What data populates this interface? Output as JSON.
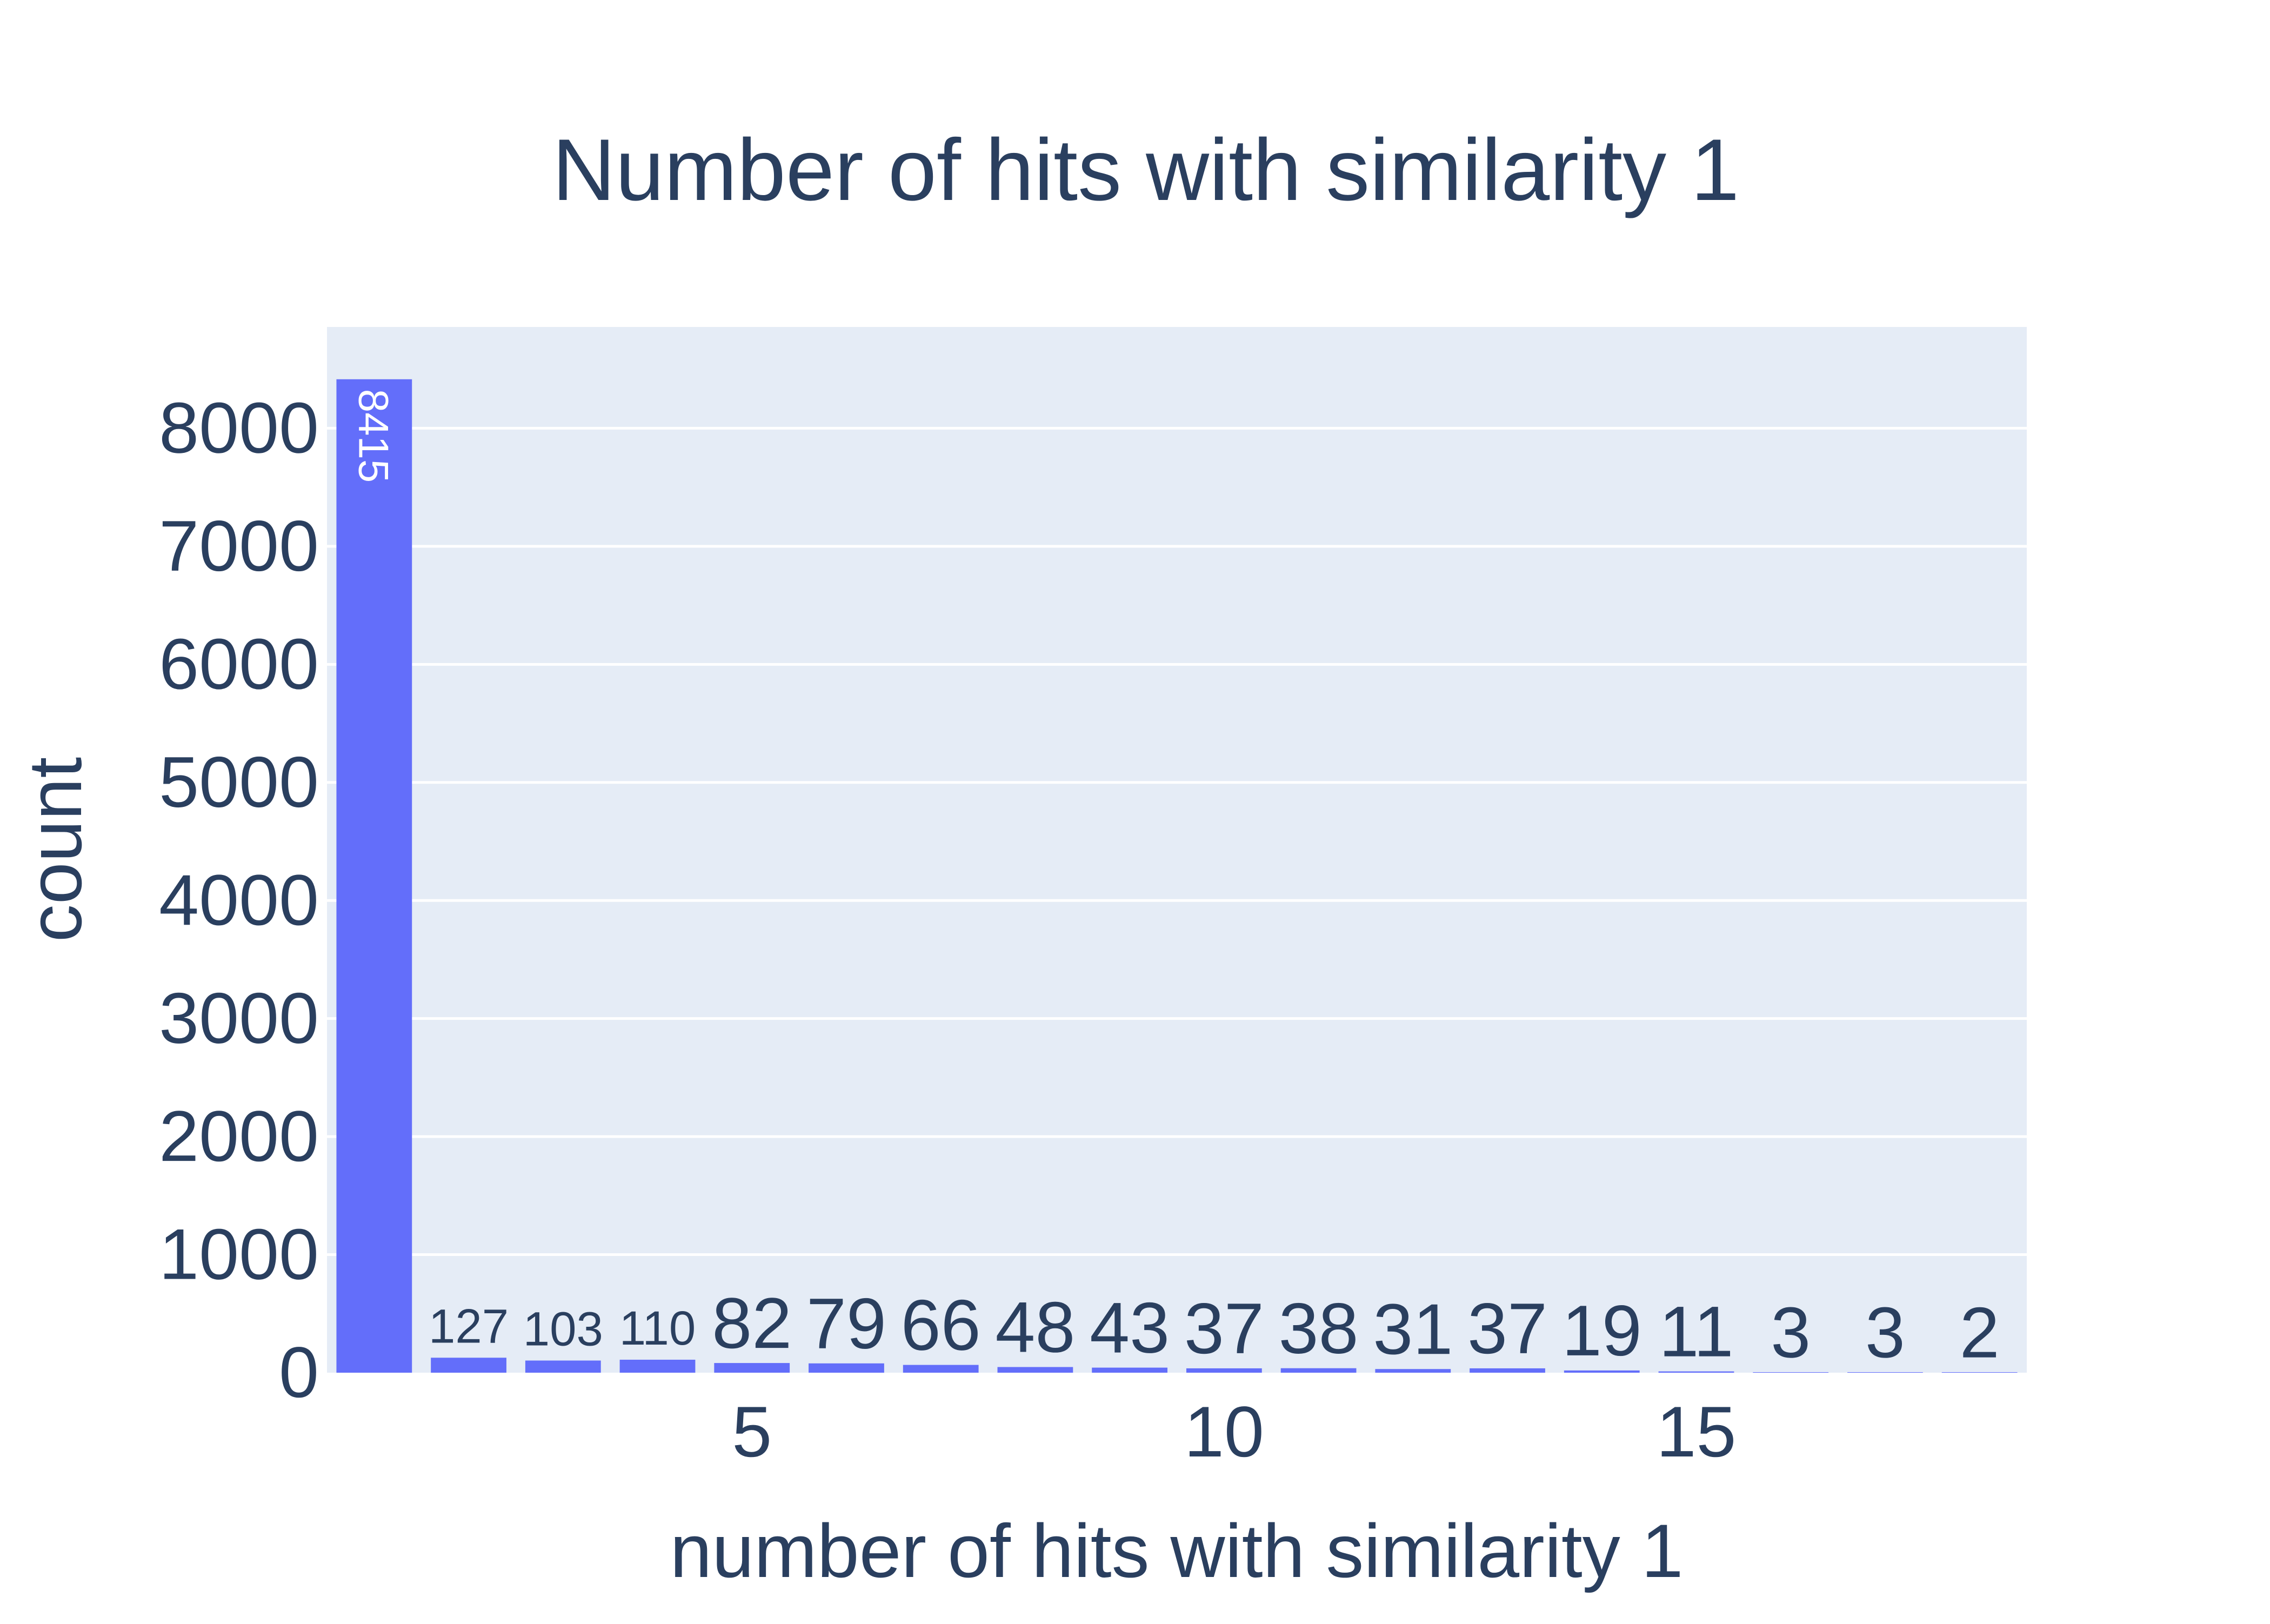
{
  "chart_data": {
    "type": "bar",
    "title": "Number of hits with similarity 1",
    "xlabel": "number of hits with similarity 1",
    "ylabel": "count",
    "x": [
      1,
      2,
      3,
      4,
      5,
      6,
      7,
      8,
      9,
      10,
      11,
      12,
      13,
      14,
      15,
      16,
      17,
      18
    ],
    "values": [
      8415,
      127,
      103,
      110,
      82,
      79,
      66,
      48,
      43,
      37,
      38,
      31,
      37,
      19,
      11,
      3,
      3,
      2
    ],
    "data_labels": [
      "8415",
      "127",
      "103",
      "110",
      "82",
      "79",
      "66",
      "48",
      "43",
      "37",
      "38",
      "31",
      "37",
      "19",
      "11",
      "3",
      "3",
      "2"
    ],
    "xlim": [
      0.5,
      18.5
    ],
    "ylim": [
      0,
      8858
    ],
    "x_ticks": [
      5,
      10,
      15
    ],
    "x_tick_labels": [
      "5",
      "10",
      "15"
    ],
    "y_ticks": [
      0,
      1000,
      2000,
      3000,
      4000,
      5000,
      6000,
      7000,
      8000
    ],
    "y_tick_labels": [
      "0",
      "1000",
      "2000",
      "3000",
      "4000",
      "5000",
      "6000",
      "7000",
      "8000"
    ],
    "grid": true,
    "legend": "none"
  },
  "colors": {
    "bar": "#636efa",
    "plot_background": "#e5ecf6",
    "gridline": "#ffffff",
    "text": "#2a3f5f",
    "inside_label": "#ffffff"
  }
}
